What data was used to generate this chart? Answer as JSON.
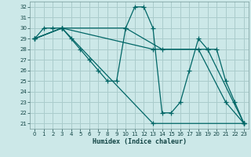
{
  "xlabel": "Humidex (Indice chaleur)",
  "bg_color": "#cce8e8",
  "grid_color": "#aacccc",
  "line_color": "#006666",
  "xlim": [
    -0.5,
    23.5
  ],
  "ylim": [
    20.5,
    32.5
  ],
  "xticks": [
    0,
    1,
    2,
    3,
    4,
    5,
    6,
    7,
    8,
    9,
    10,
    11,
    12,
    13,
    14,
    15,
    16,
    17,
    18,
    19,
    20,
    21,
    22,
    23
  ],
  "yticks": [
    21,
    22,
    23,
    24,
    25,
    26,
    27,
    28,
    29,
    30,
    31,
    32
  ],
  "lines": [
    {
      "x": [
        0,
        1,
        2,
        3,
        4,
        5,
        6,
        7,
        8,
        9,
        10,
        11,
        12,
        13,
        14,
        15,
        16,
        17,
        18,
        19,
        20,
        21,
        22,
        23
      ],
      "y": [
        29,
        30,
        30,
        30,
        29,
        28,
        27,
        26,
        25,
        25,
        30,
        32,
        32,
        30,
        22,
        22,
        23,
        26,
        29,
        28,
        28,
        25,
        23,
        21
      ]
    },
    {
      "x": [
        0,
        3,
        13,
        23
      ],
      "y": [
        29,
        30,
        21,
        21
      ]
    },
    {
      "x": [
        0,
        3,
        13,
        19,
        23
      ],
      "y": [
        29,
        30,
        28,
        28,
        21
      ]
    },
    {
      "x": [
        0,
        3,
        10,
        14,
        18,
        21,
        23
      ],
      "y": [
        29,
        30,
        30,
        28,
        28,
        23,
        21
      ]
    }
  ]
}
